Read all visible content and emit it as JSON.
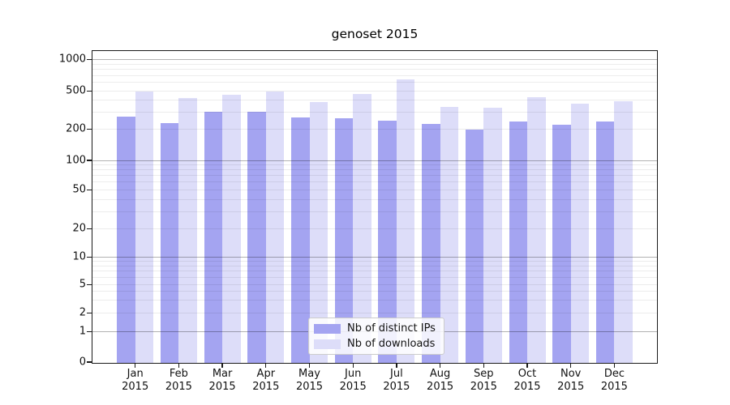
{
  "title": "genoset 2015",
  "chart_data": {
    "type": "bar",
    "title": "genoset 2015",
    "categories": [
      "Jan 2015",
      "Feb 2015",
      "Mar 2015",
      "Apr 2015",
      "May 2015",
      "Jun 2015",
      "Jul 2015",
      "Aug 2015",
      "Sep 2015",
      "Oct 2015",
      "Nov 2015",
      "Dec 2015"
    ],
    "series": [
      {
        "name": "Nb of distinct IPs",
        "color": "#a4a4f1",
        "values": [
          270,
          230,
          300,
          300,
          262,
          258,
          244,
          228,
          197,
          238,
          222,
          238
        ]
      },
      {
        "name": "Nb of downloads",
        "color": "#ddddf9",
        "values": [
          490,
          415,
          450,
          492,
          379,
          460,
          640,
          339,
          331,
          424,
          364,
          384
        ]
      }
    ],
    "xlabel": "",
    "ylabel": "",
    "yscale": "log",
    "y_tick_values": [
      0,
      1,
      2,
      5,
      10,
      20,
      50,
      100,
      200,
      500,
      1000
    ],
    "ylim": [
      0,
      1200
    ],
    "grid": {
      "horizontal_major_at": [
        1,
        10,
        100,
        1000
      ],
      "horizontal_minor": "2-9 multiples per decade"
    },
    "legend_position": "lower center inside plot"
  }
}
